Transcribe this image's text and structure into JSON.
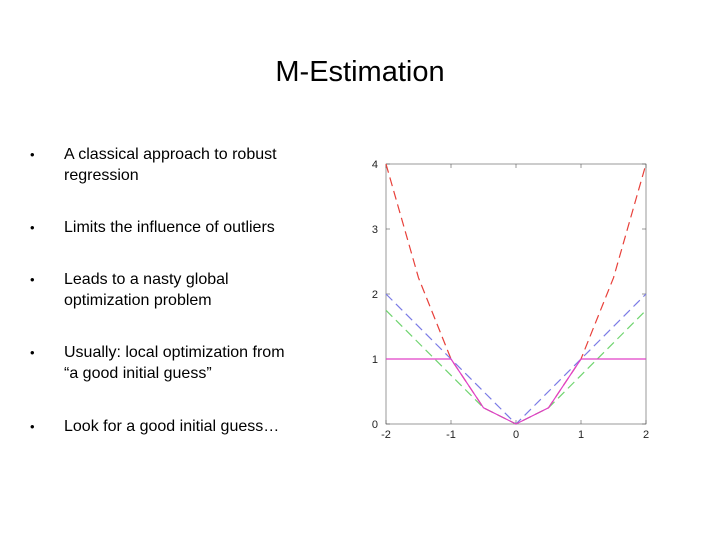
{
  "slide": {
    "title": "M-Estimation",
    "bullet_symbol": "•",
    "bullets": [
      "A classical approach to robust\nregression",
      "Limits the influence of outliers",
      "Leads to a nasty global\noptimization problem",
      "Usually: local optimization from\n“a good initial guess”",
      "Look for a good initial guess…"
    ]
  },
  "chart_data": {
    "type": "line",
    "title": "",
    "xlabel": "",
    "ylabel": "",
    "xlim": [
      -2,
      2
    ],
    "ylim": [
      0,
      4
    ],
    "x_ticks": [
      "-2",
      "-1",
      "0",
      "1",
      "2"
    ],
    "y_ticks": [
      "0",
      "1",
      "2",
      "3",
      "4"
    ],
    "grid": false,
    "series": [
      {
        "color": "#e8403a",
        "style": "dashed",
        "x": [
          -2,
          -1.5,
          -1,
          -0.5,
          0,
          0.5,
          1,
          1.5,
          2
        ],
        "y": [
          4,
          2.25,
          1,
          0.25,
          0,
          0.25,
          1,
          2.25,
          4
        ]
      },
      {
        "color": "#7b7be6",
        "style": "dashed",
        "x": [
          -2,
          -1,
          0,
          1,
          2
        ],
        "y": [
          2,
          1,
          0,
          1,
          2
        ]
      },
      {
        "color": "#6fd46f",
        "style": "dashed",
        "x": [
          -2,
          -1,
          -0.5,
          0,
          0.5,
          1,
          2
        ],
        "y": [
          1.75,
          0.75,
          0.25,
          0,
          0.25,
          0.75,
          1.75
        ]
      },
      {
        "color": "#e040c8",
        "style": "solid",
        "x": [
          -2,
          -1,
          -0.5,
          0,
          0.5,
          1,
          2
        ],
        "y": [
          1,
          1,
          0.25,
          0,
          0.25,
          1,
          1
        ]
      }
    ]
  }
}
